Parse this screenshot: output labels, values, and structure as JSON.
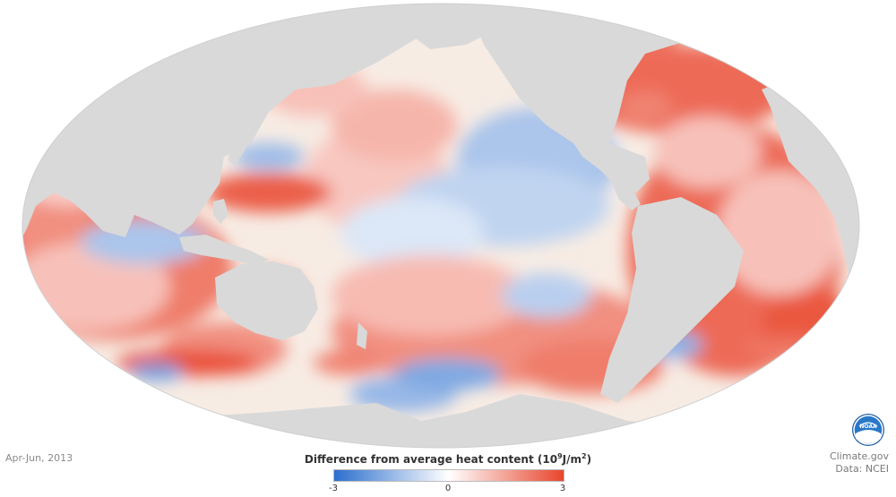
{
  "date": "Apr-Jun, 2013",
  "legend": {
    "title": "Difference from average heat content",
    "unit_base": "10",
    "unit_exp": "9",
    "unit_rest": "J/m",
    "unit_exp2": "2",
    "ticks": [
      "-3",
      "0",
      "3"
    ],
    "min": -3,
    "max": 3,
    "colors": [
      "#2c6fce",
      "#ffffff",
      "#e8452c"
    ]
  },
  "credits": {
    "site": "Climate.gov",
    "data": "Data: NCEI"
  },
  "logo_text": "NOAA",
  "colors": {
    "land": "#d9d9d9",
    "ocean_neutral": "#f7ece4",
    "warm": "#e8452c",
    "cool": "#2c6fce"
  },
  "anomalies": [
    {
      "region": "north-pacific-west",
      "value": 2.6
    },
    {
      "region": "north-pacific-center",
      "value": 1.2
    },
    {
      "region": "north-pacific-northeast",
      "value": 1.0
    },
    {
      "region": "kuroshio",
      "value": -1.4
    },
    {
      "region": "equatorial-pacific-east",
      "value": -0.9
    },
    {
      "region": "tropical-pacific-center",
      "value": -0.5
    },
    {
      "region": "south-pacific-center",
      "value": 1.1
    },
    {
      "region": "south-pacific-east",
      "value": -1.0
    },
    {
      "region": "southern-ocean-pacific",
      "value": -1.8
    },
    {
      "region": "north-atlantic-west",
      "value": 2.0
    },
    {
      "region": "north-atlantic-center",
      "value": 1.0
    },
    {
      "region": "labrador-sea",
      "value": 2.2
    },
    {
      "region": "south-atlantic",
      "value": 1.0
    },
    {
      "region": "south-atlantic-brazil",
      "value": -1.6
    },
    {
      "region": "southern-ocean-atlantic",
      "value": 2.2
    },
    {
      "region": "indian-ocean-west",
      "value": 1.0
    },
    {
      "region": "indian-ocean-east",
      "value": -1.2
    },
    {
      "region": "southern-indian",
      "value": 2.8
    },
    {
      "region": "southern-indian-west",
      "value": -2.0
    },
    {
      "region": "arabian-sea",
      "value": 0.8
    },
    {
      "region": "gulf-of-mexico",
      "value": -1.2
    },
    {
      "region": "tasman-sea",
      "value": 2.0
    }
  ]
}
